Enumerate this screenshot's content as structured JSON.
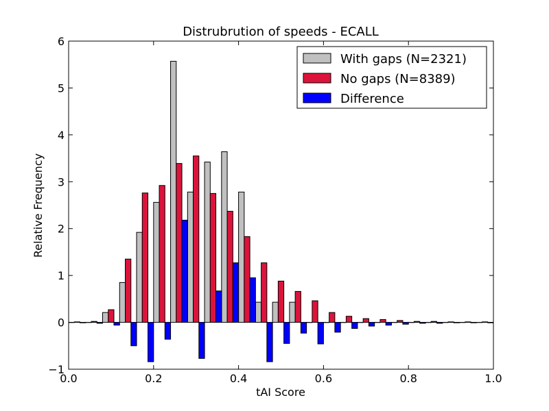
{
  "chart_data": {
    "type": "bar",
    "title": "Distrubrution of speeds - ECALL",
    "xlabel": "tAI Score",
    "ylabel": "Relative Frequency",
    "xlim": [
      0.0,
      1.0
    ],
    "ylim": [
      -1,
      6
    ],
    "xticks": [
      "0.0",
      "0.2",
      "0.4",
      "0.6",
      "0.8",
      "1.0"
    ],
    "yticks": [
      "−1",
      "0",
      "1",
      "2",
      "3",
      "4",
      "5",
      "6"
    ],
    "grid": false,
    "legend_position": "top-right",
    "bin_width": 0.04,
    "bin_starts": [
      0.0,
      0.04,
      0.08,
      0.12,
      0.16,
      0.2,
      0.24,
      0.28,
      0.32,
      0.36,
      0.4,
      0.44,
      0.48,
      0.52,
      0.56,
      0.6,
      0.64,
      0.68,
      0.72,
      0.76,
      0.8,
      0.84,
      0.88,
      0.92,
      0.96
    ],
    "series": [
      {
        "name": "With gaps (N=2321)",
        "color": "#c0c0c0",
        "values": [
          0,
          0,
          0.21,
          0.85,
          1.92,
          2.56,
          5.57,
          2.78,
          3.42,
          3.64,
          2.78,
          0.43,
          0.43,
          0.43,
          0,
          0,
          0,
          0,
          0,
          0,
          0,
          0,
          0,
          0,
          0
        ]
      },
      {
        "name": "No gaps (N=8389)",
        "color": "#dc143c",
        "values": [
          0.01,
          0.02,
          0.27,
          1.35,
          2.76,
          2.92,
          3.39,
          3.55,
          2.75,
          2.37,
          1.83,
          1.27,
          0.88,
          0.66,
          0.46,
          0.21,
          0.13,
          0.08,
          0.06,
          0.04,
          0.02,
          0.02,
          0.01,
          0.01,
          0.01
        ]
      },
      {
        "name": "Difference",
        "color": "#0000ff",
        "values": [
          -0.01,
          -0.02,
          -0.06,
          -0.5,
          -0.84,
          -0.36,
          2.18,
          -0.77,
          0.67,
          1.27,
          0.95,
          -0.84,
          -0.45,
          -0.23,
          -0.46,
          -0.21,
          -0.13,
          -0.08,
          -0.06,
          -0.04,
          -0.02,
          -0.02,
          -0.01,
          -0.01,
          -0.01
        ]
      }
    ]
  }
}
